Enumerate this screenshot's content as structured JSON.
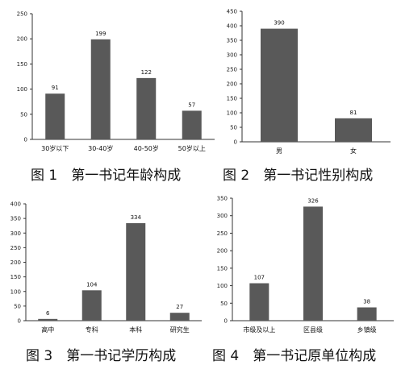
{
  "chart_data": [
    {
      "type": "bar",
      "caption": "图 1　第一书记年龄构成",
      "categories": [
        "30岁以下",
        "30-40岁",
        "40-50岁",
        "50岁以上"
      ],
      "values": [
        91,
        199,
        122,
        57
      ],
      "ylim": [
        0,
        250
      ],
      "yticks": [
        0,
        50,
        100,
        150,
        200,
        250
      ],
      "grid": false,
      "bar_color": "#595959",
      "title": "",
      "xlabel": "",
      "ylabel": ""
    },
    {
      "type": "bar",
      "caption": "图 2　第一书记性别构成",
      "categories": [
        "男",
        "女"
      ],
      "values": [
        390,
        81
      ],
      "ylim": [
        0,
        450
      ],
      "yticks": [
        0,
        50,
        100,
        150,
        200,
        250,
        300,
        350,
        400,
        450
      ],
      "grid": false,
      "bar_color": "#595959",
      "title": "",
      "xlabel": "",
      "ylabel": ""
    },
    {
      "type": "bar",
      "caption": "图 3　第一书记学历构成",
      "categories": [
        "高中",
        "专科",
        "本科",
        "研究生"
      ],
      "values": [
        6,
        104,
        334,
        27
      ],
      "ylim": [
        0,
        400
      ],
      "yticks": [
        0,
        50,
        100,
        150,
        200,
        250,
        300,
        350,
        400
      ],
      "grid": false,
      "bar_color": "#595959",
      "title": "",
      "xlabel": "",
      "ylabel": ""
    },
    {
      "type": "bar",
      "caption": "图 4　第一书记原单位构成",
      "categories": [
        "市级及以上",
        "区县级",
        "乡镇级"
      ],
      "values": [
        107,
        326,
        38
      ],
      "ylim": [
        0,
        350
      ],
      "yticks": [
        0,
        50,
        100,
        150,
        200,
        250,
        300,
        350
      ],
      "grid": false,
      "bar_color": "#595959",
      "title": "",
      "xlabel": "",
      "ylabel": ""
    }
  ]
}
